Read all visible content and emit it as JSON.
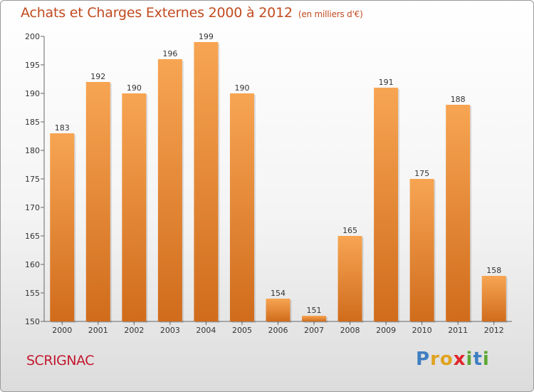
{
  "header": {
    "title": "Achats et Charges Externes 2000 à 2012",
    "unit": "(en milliers d'€)"
  },
  "footer": {
    "commune": "SCRIGNAC",
    "logo_letters": [
      "P",
      "r",
      "o",
      "x",
      "i",
      "t",
      "i"
    ],
    "logo_colors": [
      "#3f7fc2",
      "#e0a21f",
      "#e0a21f",
      "#e0262a",
      "#5aa832",
      "#3f7fc2",
      "#5aa832"
    ]
  },
  "colors": {
    "bar_light": "#f7a553",
    "bar_dark": "#d06c1c",
    "title": "#c14a1f",
    "commune": "#c2182e"
  },
  "chart_data": {
    "type": "bar",
    "categories": [
      "2000",
      "2001",
      "2002",
      "2003",
      "2004",
      "2005",
      "2006",
      "2007",
      "2008",
      "2009",
      "2010",
      "2011",
      "2012"
    ],
    "values": [
      183,
      192,
      190,
      196,
      199,
      190,
      154,
      151,
      165,
      191,
      175,
      188,
      158
    ],
    "ylim": [
      150,
      200
    ],
    "yticks": [
      150,
      155,
      160,
      165,
      170,
      175,
      180,
      185,
      190,
      195,
      200
    ],
    "grid": false,
    "data_labels": true
  }
}
